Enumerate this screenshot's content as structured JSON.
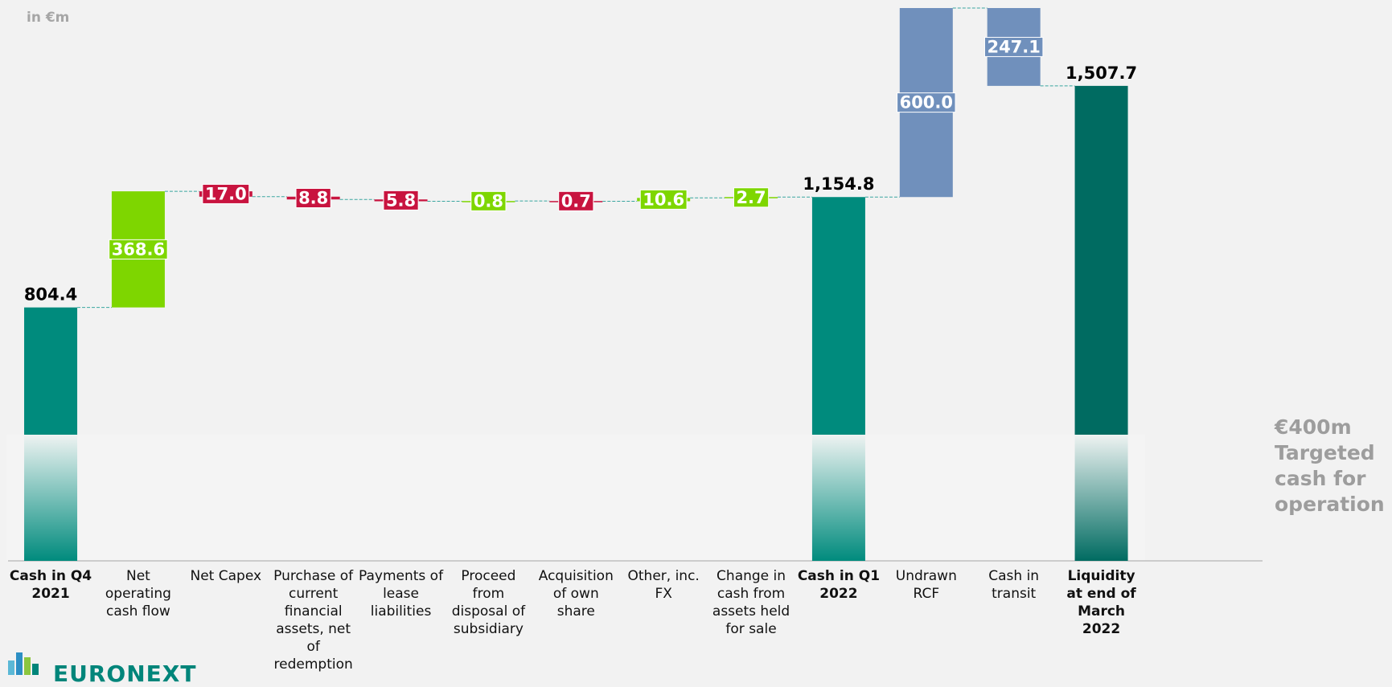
{
  "chart_data": {
    "type": "waterfall",
    "unit_label": "in €m",
    "categories": [
      "Cash in Q4 2021",
      "Net operating cash flow",
      "Net Capex",
      "Purchase of current financial assets, net of redemption",
      "Payments of lease liabilities",
      "Proceed from disposal of subsidiary",
      "Acquisition of own share",
      "Other, inc. FX",
      "Change in cash from assets held for sale",
      "Cash in Q1 2022",
      "Undrawn RCF",
      "Cash in transit",
      "Liquidity at end of March 2022"
    ],
    "measures": [
      "total",
      "increase",
      "decrease",
      "decrease",
      "decrease",
      "increase",
      "decrease",
      "increase",
      "increase",
      "total",
      "increase",
      "decrease",
      "total"
    ],
    "values": [
      804.4,
      368.6,
      17.0,
      8.8,
      5.8,
      0.8,
      0.7,
      10.6,
      2.7,
      1154.8,
      600.0,
      247.1,
      1507.7
    ],
    "value_labels": [
      "804.4",
      "368.6",
      "17.0",
      "8.8",
      "5.8",
      "0.8",
      "0.7",
      "10.6",
      "2.7",
      "1,154.8",
      "600.0",
      "247.1",
      "1,507.7"
    ],
    "colors": [
      "#008b7d",
      "#7ed600",
      "#c8143f",
      "#c8143f",
      "#c8143f",
      "#7ed600",
      "#c8143f",
      "#7ed600",
      "#7ed600",
      "#008b7d",
      "#7090bc",
      "#7090bc",
      "#006b61"
    ],
    "target_value": 400,
    "annotation": "€400m Targeted cash for operation",
    "logo_text": "EURONEXT"
  }
}
